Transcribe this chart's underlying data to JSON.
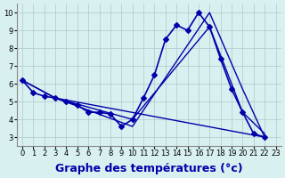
{
  "background_color": "#d8f0f0",
  "grid_color": "#b0c8c8",
  "line_color": "#0000aa",
  "xlabel": "Graphe des températures (°c)",
  "xlabel_fontsize": 9,
  "ylim": [
    2.5,
    10.5
  ],
  "xlim": [
    -0.5,
    23.5
  ],
  "yticks": [
    3,
    4,
    5,
    6,
    7,
    8,
    9,
    10
  ],
  "xticks": [
    0,
    1,
    2,
    3,
    4,
    5,
    6,
    7,
    8,
    9,
    10,
    11,
    12,
    13,
    14,
    15,
    16,
    17,
    18,
    19,
    20,
    21,
    22,
    23
  ],
  "series": [
    {
      "x": [
        0,
        1,
        2,
        3,
        4,
        5,
        6,
        7,
        8,
        9,
        10,
        11,
        12,
        13,
        14,
        15,
        16,
        17,
        18,
        19,
        20,
        21,
        22
      ],
      "y": [
        6.2,
        5.5,
        5.3,
        5.2,
        5.0,
        4.8,
        4.4,
        4.4,
        4.3,
        3.6,
        4.0,
        5.2,
        6.5,
        8.5,
        9.3,
        9.0,
        10.0,
        9.2,
        7.4,
        5.7,
        4.4,
        3.2,
        3.0
      ],
      "marker": "D",
      "markersize": 3,
      "linewidth": 1.2
    },
    {
      "x": [
        0,
        3,
        10,
        17,
        20,
        22
      ],
      "y": [
        6.2,
        5.2,
        4.0,
        9.2,
        4.4,
        3.2
      ],
      "marker": "",
      "markersize": 0,
      "linewidth": 1.0
    },
    {
      "x": [
        0,
        3,
        10,
        17,
        20,
        22
      ],
      "y": [
        6.2,
        5.2,
        3.6,
        10.0,
        5.7,
        3.0
      ],
      "marker": "",
      "markersize": 0,
      "linewidth": 1.0
    },
    {
      "x": [
        3,
        22
      ],
      "y": [
        5.2,
        3.0
      ],
      "marker": "",
      "markersize": 0,
      "linewidth": 1.0
    }
  ]
}
